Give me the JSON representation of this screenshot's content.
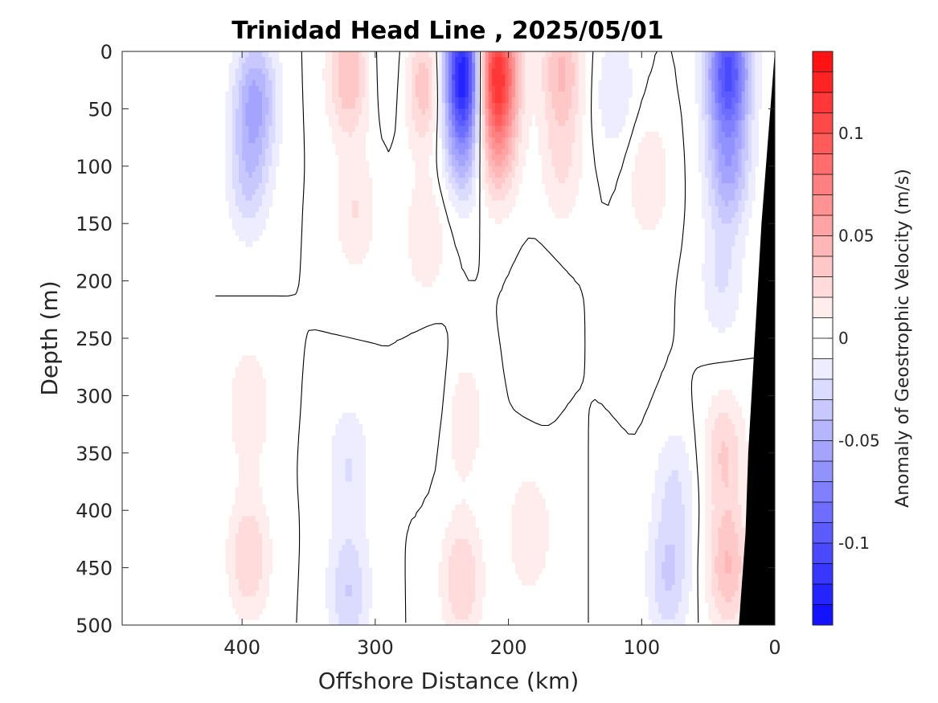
{
  "chart_data": {
    "type": "contourf",
    "title": "Trinidad Head Line , 2025/05/01",
    "xlabel": "Offshore Distance (km)",
    "ylabel": "Depth (m)",
    "xlim": [
      490,
      0
    ],
    "ylim": [
      0,
      500
    ],
    "x_reversed": true,
    "y_reversed": true,
    "x_ticks": [
      400,
      300,
      200,
      100,
      0
    ],
    "y_ticks": [
      0,
      50,
      100,
      150,
      200,
      250,
      300,
      350,
      400,
      450,
      500
    ],
    "colorbar": {
      "label": "Anomaly of Geostrophic Velocity (m/s)",
      "range": [
        -0.14,
        0.14
      ],
      "step": 0.01,
      "ticks": [
        0.1,
        0.05,
        0,
        -0.05,
        -0.1
      ],
      "tick_labels": [
        "0.1",
        "0.05",
        "0",
        "-0.05",
        "-0.1"
      ],
      "positive_color": "#ff0000",
      "negative_color": "#0000ff",
      "zero_color": "#ffffff"
    },
    "data_extent_km": [
      420,
      0
    ],
    "bottom_mask_color": "#000000",
    "bottom_depth_profile": {
      "x": [
        0,
        10,
        20,
        22,
        27
      ],
      "depth": [
        0,
        150,
        350,
        420,
        500
      ]
    },
    "zero_contour_color": "#000000",
    "velocity_features": [
      {
        "x": 390,
        "depth": 40,
        "value": -0.05
      },
      {
        "x": 395,
        "depth": 110,
        "value": -0.03
      },
      {
        "x": 320,
        "depth": 20,
        "value": 0.04
      },
      {
        "x": 315,
        "depth": 140,
        "value": 0.02
      },
      {
        "x": 290,
        "depth": 15,
        "value": -0.01
      },
      {
        "x": 262,
        "depth": 30,
        "value": 0.04
      },
      {
        "x": 262,
        "depth": 160,
        "value": 0.02
      },
      {
        "x": 233,
        "depth": 15,
        "value": -0.13
      },
      {
        "x": 233,
        "depth": 80,
        "value": -0.05
      },
      {
        "x": 210,
        "depth": 15,
        "value": 0.12
      },
      {
        "x": 210,
        "depth": 80,
        "value": 0.05
      },
      {
        "x": 160,
        "depth": 15,
        "value": 0.04
      },
      {
        "x": 160,
        "depth": 100,
        "value": 0.02
      },
      {
        "x": 120,
        "depth": 35,
        "value": -0.02
      },
      {
        "x": 95,
        "depth": 110,
        "value": 0.02
      },
      {
        "x": 110,
        "depth": 240,
        "value": 0.01
      },
      {
        "x": 35,
        "depth": 15,
        "value": -0.1
      },
      {
        "x": 35,
        "depth": 100,
        "value": -0.05
      },
      {
        "x": 40,
        "depth": 200,
        "value": -0.02
      },
      {
        "x": 395,
        "depth": 440,
        "value": 0.03
      },
      {
        "x": 395,
        "depth": 310,
        "value": 0.02
      },
      {
        "x": 320,
        "depth": 470,
        "value": -0.03
      },
      {
        "x": 320,
        "depth": 360,
        "value": -0.02
      },
      {
        "x": 235,
        "depth": 460,
        "value": 0.03
      },
      {
        "x": 235,
        "depth": 320,
        "value": 0.02
      },
      {
        "x": 255,
        "depth": 300,
        "value": -0.01
      },
      {
        "x": 185,
        "depth": 420,
        "value": 0.02
      },
      {
        "x": 150,
        "depth": 400,
        "value": 0.01
      },
      {
        "x": 175,
        "depth": 240,
        "value": -0.01
      },
      {
        "x": 130,
        "depth": 400,
        "value": -0.01
      },
      {
        "x": 80,
        "depth": 460,
        "value": -0.03
      },
      {
        "x": 75,
        "depth": 380,
        "value": -0.02
      },
      {
        "x": 35,
        "depth": 450,
        "value": 0.04
      },
      {
        "x": 38,
        "depth": 350,
        "value": 0.03
      }
    ]
  }
}
